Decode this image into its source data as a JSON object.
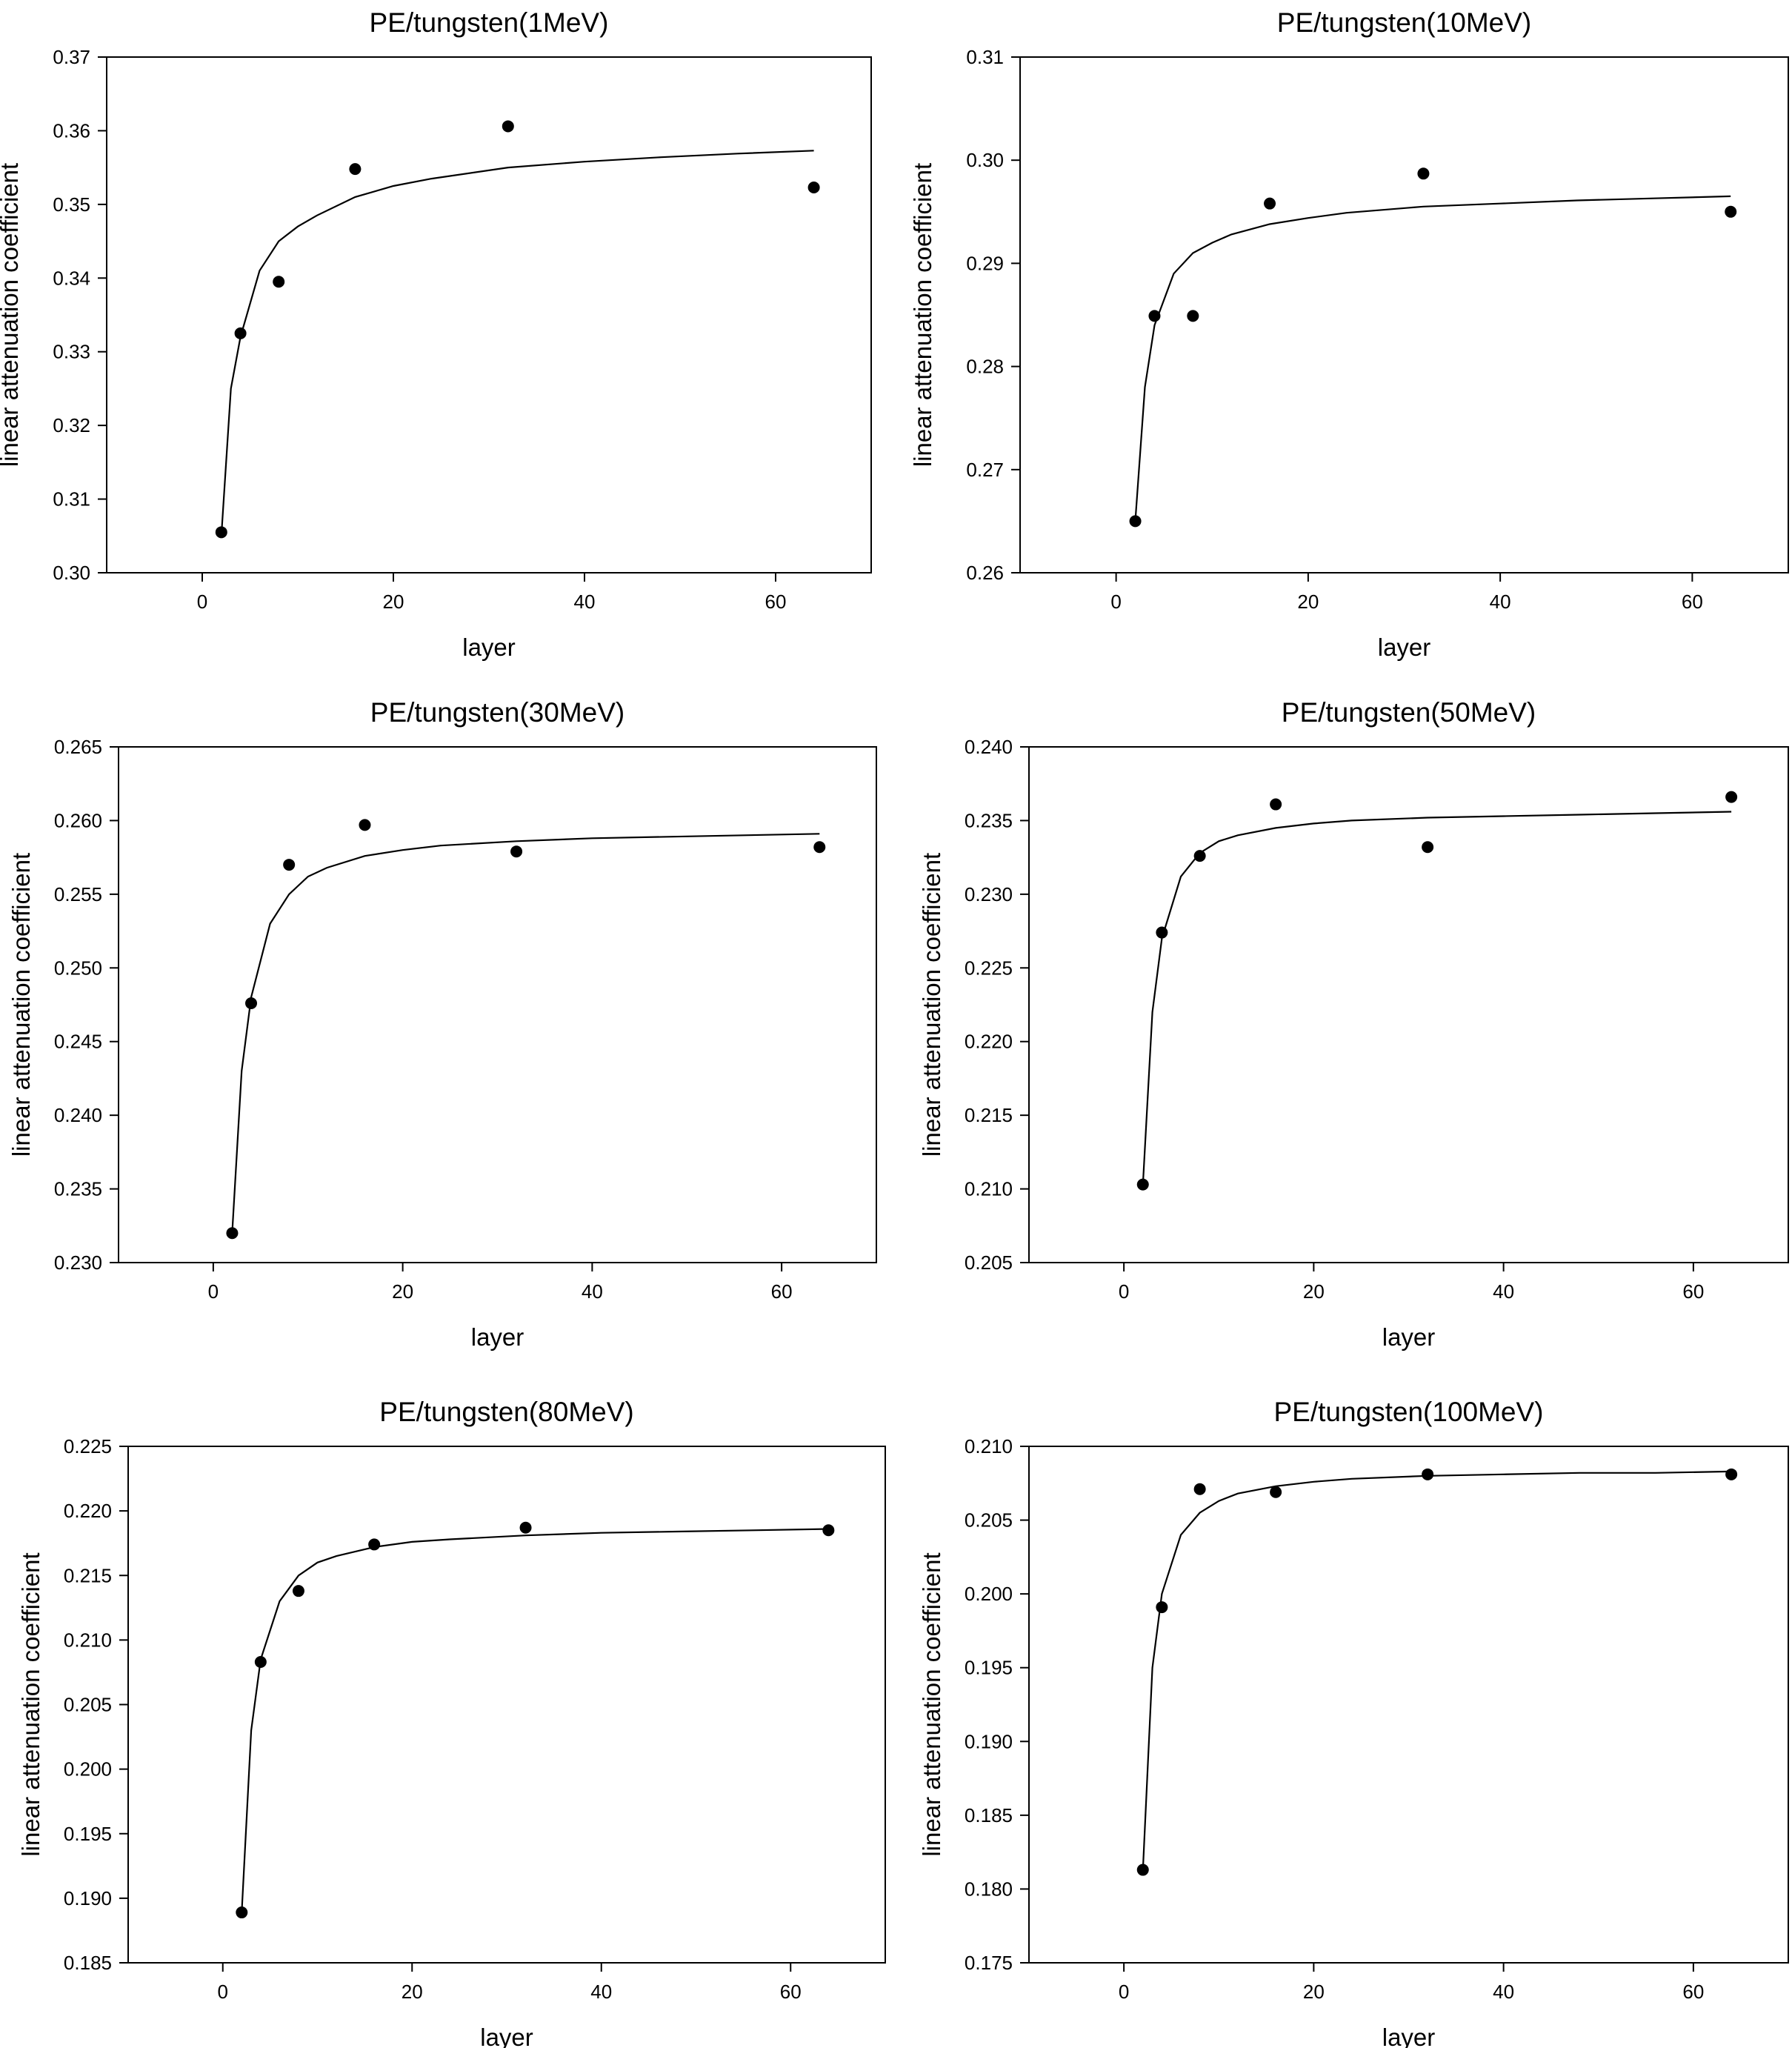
{
  "chart_data": [
    {
      "type": "scatter",
      "title": "PE/tungsten(1MeV)",
      "xlabel": "layer",
      "ylabel": "linear attenuation coefficient",
      "xlim": [
        -10,
        70
      ],
      "ylim": [
        0.3,
        0.37
      ],
      "xticks": [
        "0",
        "20",
        "40",
        "60"
      ],
      "yticks": [
        "0.30",
        "0.31",
        "0.32",
        "0.33",
        "0.34",
        "0.35",
        "0.36",
        "0.37"
      ],
      "grid": false,
      "x": [
        2,
        4,
        8,
        16,
        32,
        64
      ],
      "y": [
        0.3055,
        0.3325,
        0.3395,
        0.3548,
        0.3606,
        0.3523
      ],
      "fit_line": {
        "x": [
          2,
          3,
          4,
          6,
          8,
          10,
          12,
          16,
          20,
          24,
          32,
          40,
          48,
          56,
          64
        ],
        "y": [
          0.305,
          0.325,
          0.332,
          0.341,
          0.345,
          0.347,
          0.3485,
          0.351,
          0.3525,
          0.3535,
          0.355,
          0.3558,
          0.3564,
          0.3569,
          0.3573
        ]
      }
    },
    {
      "type": "scatter",
      "title": "PE/tungsten(10MeV)",
      "xlabel": "layer",
      "ylabel": "linear attenuation coefficient",
      "xlim": [
        -10,
        70
      ],
      "ylim": [
        0.26,
        0.31
      ],
      "xticks": [
        "0",
        "20",
        "40",
        "60"
      ],
      "yticks": [
        "0.26",
        "0.27",
        "0.28",
        "0.29",
        "0.30",
        "0.31"
      ],
      "grid": false,
      "x": [
        2,
        4,
        8,
        16,
        32,
        64
      ],
      "y": [
        0.265,
        0.2849,
        0.2849,
        0.2958,
        0.2987,
        0.295
      ],
      "fit_line": {
        "x": [
          2,
          3,
          4,
          6,
          8,
          10,
          12,
          16,
          20,
          24,
          32,
          40,
          48,
          56,
          64
        ],
        "y": [
          0.265,
          0.278,
          0.284,
          0.289,
          0.291,
          0.292,
          0.2928,
          0.2938,
          0.2944,
          0.2949,
          0.2955,
          0.2958,
          0.2961,
          0.2963,
          0.2965
        ]
      }
    },
    {
      "type": "scatter",
      "title": "PE/tungsten(30MeV)",
      "xlabel": "layer",
      "ylabel": "linear attenuation coefficient",
      "xlim": [
        -10,
        70
      ],
      "ylim": [
        0.23,
        0.265
      ],
      "xticks": [
        "0",
        "20",
        "40",
        "60"
      ],
      "yticks": [
        "0.230",
        "0.235",
        "0.240",
        "0.245",
        "0.250",
        "0.255",
        "0.260",
        "0.265"
      ],
      "grid": false,
      "x": [
        2,
        4,
        8,
        16,
        32,
        64
      ],
      "y": [
        0.232,
        0.2476,
        0.257,
        0.2597,
        0.2579,
        0.2582
      ],
      "fit_line": {
        "x": [
          2,
          3,
          4,
          6,
          8,
          10,
          12,
          16,
          20,
          24,
          32,
          40,
          48,
          56,
          64
        ],
        "y": [
          0.232,
          0.243,
          0.248,
          0.253,
          0.255,
          0.2562,
          0.2568,
          0.2576,
          0.258,
          0.2583,
          0.2586,
          0.2588,
          0.2589,
          0.259,
          0.2591
        ]
      }
    },
    {
      "type": "scatter",
      "title": "PE/tungsten(50MeV)",
      "xlabel": "layer",
      "ylabel": "linear attenuation coefficient",
      "xlim": [
        -10,
        70
      ],
      "ylim": [
        0.205,
        0.24
      ],
      "xticks": [
        "0",
        "20",
        "40",
        "60"
      ],
      "yticks": [
        "0.205",
        "0.210",
        "0.215",
        "0.220",
        "0.225",
        "0.230",
        "0.235",
        "0.240"
      ],
      "grid": false,
      "x": [
        2,
        4,
        8,
        16,
        32,
        64
      ],
      "y": [
        0.2103,
        0.2274,
        0.2326,
        0.2361,
        0.2332,
        0.2366
      ],
      "fit_line": {
        "x": [
          2,
          3,
          4,
          6,
          8,
          10,
          12,
          16,
          20,
          24,
          32,
          40,
          48,
          56,
          64
        ],
        "y": [
          0.2103,
          0.222,
          0.227,
          0.2312,
          0.2328,
          0.2336,
          0.234,
          0.2345,
          0.2348,
          0.235,
          0.2352,
          0.2353,
          0.2354,
          0.2355,
          0.2356
        ]
      }
    },
    {
      "type": "scatter",
      "title": "PE/tungsten(80MeV)",
      "xlabel": "layer",
      "ylabel": "linear attenuation coefficient",
      "xlim": [
        -10,
        70
      ],
      "ylim": [
        0.185,
        0.225
      ],
      "xticks": [
        "0",
        "20",
        "40",
        "60"
      ],
      "yticks": [
        "0.185",
        "0.190",
        "0.195",
        "0.200",
        "0.205",
        "0.210",
        "0.215",
        "0.220",
        "0.225"
      ],
      "grid": false,
      "x": [
        2,
        4,
        8,
        16,
        32,
        64
      ],
      "y": [
        0.1889,
        0.2083,
        0.2138,
        0.2174,
        0.2187,
        0.2185
      ],
      "fit_line": {
        "x": [
          2,
          3,
          4,
          6,
          8,
          10,
          12,
          16,
          20,
          24,
          32,
          40,
          48,
          56,
          64
        ],
        "y": [
          0.1889,
          0.203,
          0.2085,
          0.213,
          0.215,
          0.216,
          0.2165,
          0.2172,
          0.2176,
          0.2178,
          0.2181,
          0.2183,
          0.2184,
          0.2185,
          0.2186
        ]
      }
    },
    {
      "type": "scatter",
      "title": "PE/tungsten(100MeV)",
      "xlabel": "layer",
      "ylabel": "linear attenuation coefficient",
      "xlim": [
        -10,
        70
      ],
      "ylim": [
        0.175,
        0.21
      ],
      "xticks": [
        "0",
        "20",
        "40",
        "60"
      ],
      "yticks": [
        "0.175",
        "0.180",
        "0.185",
        "0.190",
        "0.195",
        "0.200",
        "0.205",
        "0.210"
      ],
      "grid": false,
      "x": [
        2,
        4,
        8,
        16,
        32,
        64
      ],
      "y": [
        0.1813,
        0.1991,
        0.2071,
        0.2069,
        0.2081,
        0.2081
      ],
      "fit_line": {
        "x": [
          2,
          3,
          4,
          6,
          8,
          10,
          12,
          16,
          20,
          24,
          32,
          40,
          48,
          56,
          64
        ],
        "y": [
          0.1813,
          0.195,
          0.2,
          0.204,
          0.2055,
          0.2063,
          0.2068,
          0.2073,
          0.2076,
          0.2078,
          0.208,
          0.2081,
          0.2082,
          0.2082,
          0.2083
        ]
      }
    }
  ]
}
